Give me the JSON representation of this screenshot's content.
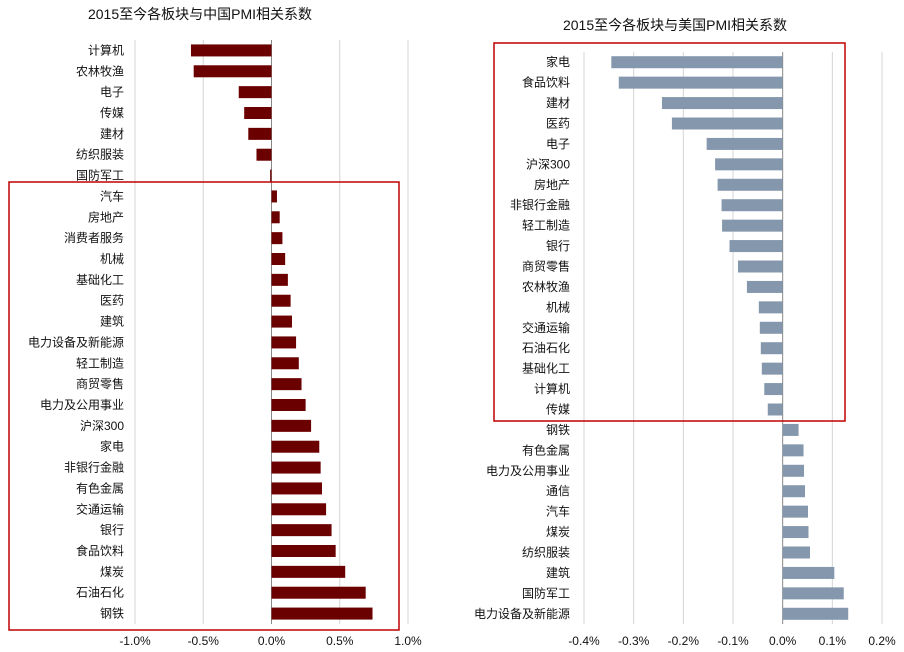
{
  "colors": {
    "left_bar": "#6b0000",
    "right_bar": "#8497ad",
    "highlight_box": "#c00000"
  },
  "chart_data": [
    {
      "type": "bar",
      "orientation": "horizontal",
      "title": "2015至今各板块与中国PMI相关系数",
      "xlim": [
        -0.01,
        0.01
      ],
      "xticks": [
        -0.01,
        -0.005,
        0.0,
        0.005,
        0.01
      ],
      "xtick_labels": [
        "-1.0%",
        "-0.5%",
        "0.0%",
        "0.5%",
        "1.0%"
      ],
      "grid": true,
      "highlight_range": [
        "汽车",
        "钢铁"
      ],
      "categories": [
        "计算机",
        "农林牧渔",
        "电子",
        "传媒",
        "建材",
        "纺织服装",
        "国防军工",
        "汽车",
        "房地产",
        "消费者服务",
        "机械",
        "基础化工",
        "医药",
        "建筑",
        "电力设备及新能源",
        "轻工制造",
        "商贸零售",
        "电力及公用事业",
        "沪深300",
        "家电",
        "非银行金融",
        "有色金属",
        "交通运输",
        "银行",
        "食品饮料",
        "煤炭",
        "石油石化",
        "钢铁"
      ],
      "values": [
        -0.0059,
        -0.0057,
        -0.0024,
        -0.002,
        -0.0017,
        -0.0011,
        -0.0001,
        0.0004,
        0.0006,
        0.0008,
        0.001,
        0.0012,
        0.0014,
        0.0015,
        0.0018,
        0.002,
        0.0022,
        0.0025,
        0.0029,
        0.0035,
        0.0036,
        0.0037,
        0.004,
        0.0044,
        0.0047,
        0.0054,
        0.0069,
        0.0074
      ]
    },
    {
      "type": "bar",
      "orientation": "horizontal",
      "title": "2015至今各板块与美国PMI相关系数",
      "xlim": [
        -0.004,
        0.002
      ],
      "xticks": [
        -0.004,
        -0.003,
        -0.002,
        -0.001,
        0.0,
        0.001,
        0.002
      ],
      "xtick_labels": [
        "-0.4%",
        "-0.3%",
        "-0.2%",
        "-0.1%",
        "0.0%",
        "0.1%",
        "0.2%"
      ],
      "grid": true,
      "highlight_range": [
        "家电",
        "传媒"
      ],
      "categories": [
        "家电",
        "食品饮料",
        "建材",
        "医药",
        "电子",
        "沪深300",
        "房地产",
        "非银行金融",
        "轻工制造",
        "银行",
        "商贸零售",
        "农林牧渔",
        "机械",
        "交通运输",
        "石油石化",
        "基础化工",
        "计算机",
        "传媒",
        "钢铁",
        "有色金属",
        "电力及公用事业",
        "通信",
        "汽车",
        "煤炭",
        "纺织服装",
        "建筑",
        "国防军工",
        "电力设备及新能源"
      ],
      "values": [
        -0.00345,
        -0.0033,
        -0.00243,
        -0.00223,
        -0.00153,
        -0.00136,
        -0.00131,
        -0.00123,
        -0.00122,
        -0.00107,
        -0.0009,
        -0.00072,
        -0.00048,
        -0.00046,
        -0.00044,
        -0.00042,
        -0.00037,
        -0.0003,
        0.00032,
        0.00042,
        0.00043,
        0.00045,
        0.00051,
        0.00052,
        0.00055,
        0.00104,
        0.00123,
        0.00132
      ]
    }
  ]
}
